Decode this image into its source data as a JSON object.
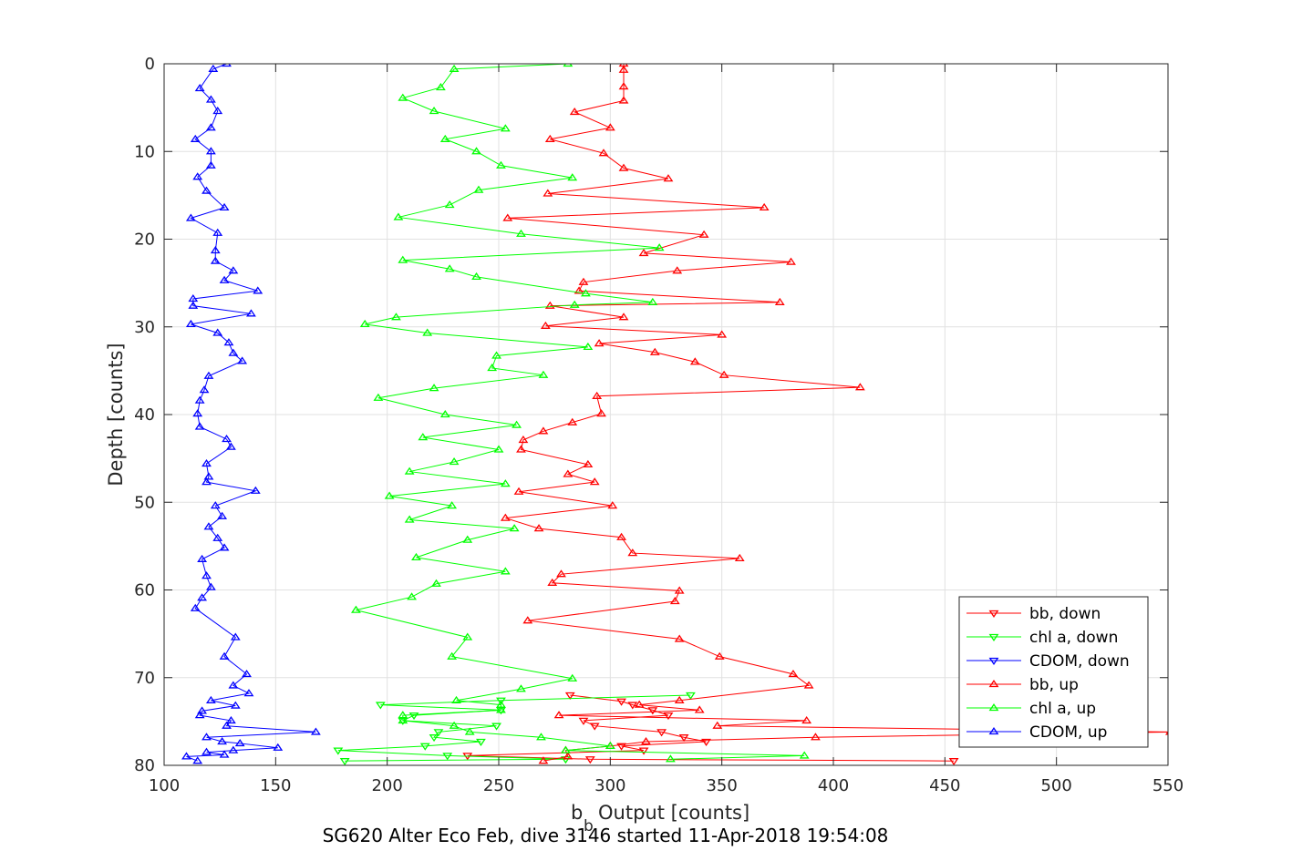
{
  "chart_data": {
    "type": "line",
    "xlabel_main": "b",
    "xlabel_sub": "b",
    "xlabel_rest": "Output [counts]",
    "ylabel": "Depth [counts]",
    "caption": "SG620 Alter Eco Feb, dive 3146 started 11-Apr-2018 19:54:08",
    "xlim": [
      100,
      550
    ],
    "ylim": [
      0,
      80
    ],
    "y_reversed": true,
    "grid": true,
    "legend_position": "bottom-right",
    "x_ticks": [
      "100",
      "150",
      "200",
      "250",
      "300",
      "350",
      "400",
      "450",
      "500",
      "550"
    ],
    "y_ticks": [
      "0",
      "10",
      "20",
      "30",
      "40",
      "50",
      "60",
      "70",
      "80"
    ],
    "series": [
      {
        "name": "bb, down",
        "color": "#ff0000",
        "marker": "triangle-down",
        "depth": [
          72.0,
          72.7,
          73.1,
          73.7,
          74.3,
          74.9,
          75.5,
          76.2,
          76.8,
          77.3,
          77.8,
          78.3,
          78.9,
          79.3,
          79.5
        ],
        "values": [
          282,
          305,
          310,
          319,
          326,
          288,
          293,
          323,
          333,
          343,
          305,
          315,
          236,
          291,
          454
        ]
      },
      {
        "name": "chl a, down",
        "color": "#00ff00",
        "marker": "triangle-down",
        "depth": [
          72.0,
          72.6,
          73.1,
          73.7,
          74.3,
          74.9,
          75.5,
          76.2,
          76.8,
          77.3,
          77.8,
          78.3,
          78.9,
          79.3,
          79.5
        ],
        "values": [
          336,
          251,
          197,
          251,
          212,
          207,
          249,
          223,
          221,
          242,
          217,
          178,
          227,
          280,
          181
        ]
      },
      {
        "name": "CDOM, down",
        "color": "#0000ff",
        "marker": "triangle-down",
        "depth": [],
        "values": []
      },
      {
        "name": "bb, up",
        "color": "#ff0000",
        "marker": "triangle-up",
        "depth": [
          79.5,
          79.0,
          78.3,
          77.8,
          77.3,
          76.8,
          76.2,
          75.5,
          74.9,
          74.3,
          73.7,
          73.1,
          72.6,
          70.9,
          69.6,
          67.6,
          65.6,
          63.5,
          61.3,
          60.1,
          59.2,
          58.2,
          56.4,
          55.8,
          54.0,
          53.0,
          51.8,
          50.4,
          48.8,
          47.7,
          46.8,
          45.7,
          44.0,
          42.9,
          41.9,
          40.9,
          39.9,
          37.9,
          36.9,
          35.5,
          34.0,
          32.9,
          31.9,
          30.9,
          29.9,
          28.9,
          27.6,
          27.2,
          25.9,
          24.9,
          23.6,
          22.6,
          21.6,
          19.5,
          17.6,
          16.4,
          14.8,
          13.1,
          11.9,
          10.2,
          8.6,
          7.3,
          5.5,
          4.2,
          2.6,
          0.7,
          0.0
        ],
        "values": [
          270,
          281,
          280,
          300,
          316,
          392,
          551,
          348,
          388,
          277,
          340,
          313,
          331,
          389,
          382,
          349,
          331,
          263,
          329,
          331,
          274,
          278,
          358,
          310,
          305,
          268,
          253,
          301,
          259,
          293,
          281,
          290,
          260,
          261,
          270,
          283,
          296,
          294,
          412,
          351,
          338,
          320,
          295,
          350,
          271,
          306,
          273,
          376,
          286,
          288,
          330,
          381,
          315,
          342,
          254,
          369,
          272,
          326,
          306,
          297,
          273,
          300,
          284,
          306,
          306,
          306,
          306
        ]
      },
      {
        "name": "chl a, up",
        "color": "#00ff00",
        "marker": "triangle-up",
        "depth": [
          79.3,
          78.9,
          78.3,
          77.8,
          76.8,
          76.2,
          75.5,
          74.9,
          74.3,
          73.7,
          73.1,
          72.6,
          71.3,
          70.1,
          67.6,
          65.4,
          62.3,
          60.8,
          59.3,
          57.9,
          56.3,
          54.3,
          53.0,
          52.0,
          50.4,
          49.3,
          47.9,
          46.5,
          45.4,
          44.0,
          42.6,
          41.2,
          40.0,
          38.1,
          37.0,
          35.5,
          34.7,
          33.3,
          32.3,
          30.7,
          29.7,
          28.9,
          27.5,
          27.2,
          26.2,
          24.3,
          23.4,
          22.4,
          21.0,
          19.4,
          17.5,
          16.1,
          14.4,
          13.0,
          11.6,
          10.0,
          8.6,
          7.4,
          5.4,
          3.9,
          2.7,
          0.6,
          0.0
        ],
        "values": [
          327,
          387,
          280,
          300,
          269,
          237,
          230,
          207,
          207,
          251,
          251,
          231,
          260,
          283,
          229,
          236,
          186,
          211,
          222,
          253,
          213,
          236,
          257,
          210,
          229,
          201,
          253,
          210,
          230,
          250,
          216,
          258,
          226,
          196,
          221,
          270,
          247,
          249,
          290,
          218,
          190,
          204,
          284,
          319,
          289,
          240,
          228,
          207,
          322,
          260,
          205,
          228,
          241,
          283,
          251,
          240,
          226,
          253,
          221,
          207,
          224,
          230,
          281
        ]
      },
      {
        "name": "CDOM, up",
        "color": "#0000ff",
        "marker": "triangle-up",
        "depth": [
          79.5,
          79.0,
          78.8,
          78.5,
          78.3,
          78.0,
          77.5,
          77.3,
          76.8,
          76.2,
          75.5,
          74.9,
          74.3,
          73.8,
          73.2,
          72.6,
          71.8,
          70.9,
          69.6,
          67.6,
          65.4,
          62.1,
          60.9,
          59.7,
          58.4,
          56.5,
          55.2,
          54.1,
          52.8,
          51.6,
          50.4,
          48.7,
          47.7,
          47.1,
          45.6,
          43.7,
          42.8,
          41.4,
          39.9,
          38.4,
          37.2,
          35.6,
          33.9,
          33.0,
          31.8,
          30.7,
          29.7,
          28.5,
          27.6,
          26.8,
          25.9,
          24.7,
          23.6,
          22.5,
          21.3,
          19.3,
          17.6,
          16.4,
          14.5,
          12.9,
          11.6,
          10.0,
          8.6,
          7.3,
          5.4,
          4.1,
          2.8,
          0.6,
          0.0
        ],
        "values": [
          115,
          110,
          127,
          119,
          131,
          151,
          134,
          126,
          119,
          168,
          128,
          130,
          116,
          117,
          132,
          121,
          138,
          131,
          137,
          127,
          132,
          114,
          117,
          121,
          119,
          117,
          127,
          124,
          120,
          126,
          123,
          141,
          119,
          120,
          119,
          130,
          128,
          116,
          115,
          116,
          118,
          120,
          135,
          131,
          129,
          124,
          112,
          139,
          113,
          113,
          142,
          127,
          131,
          123,
          123,
          124,
          112,
          127,
          119,
          115,
          121,
          121,
          114,
          121,
          124,
          121,
          116,
          122,
          128
        ]
      }
    ]
  }
}
